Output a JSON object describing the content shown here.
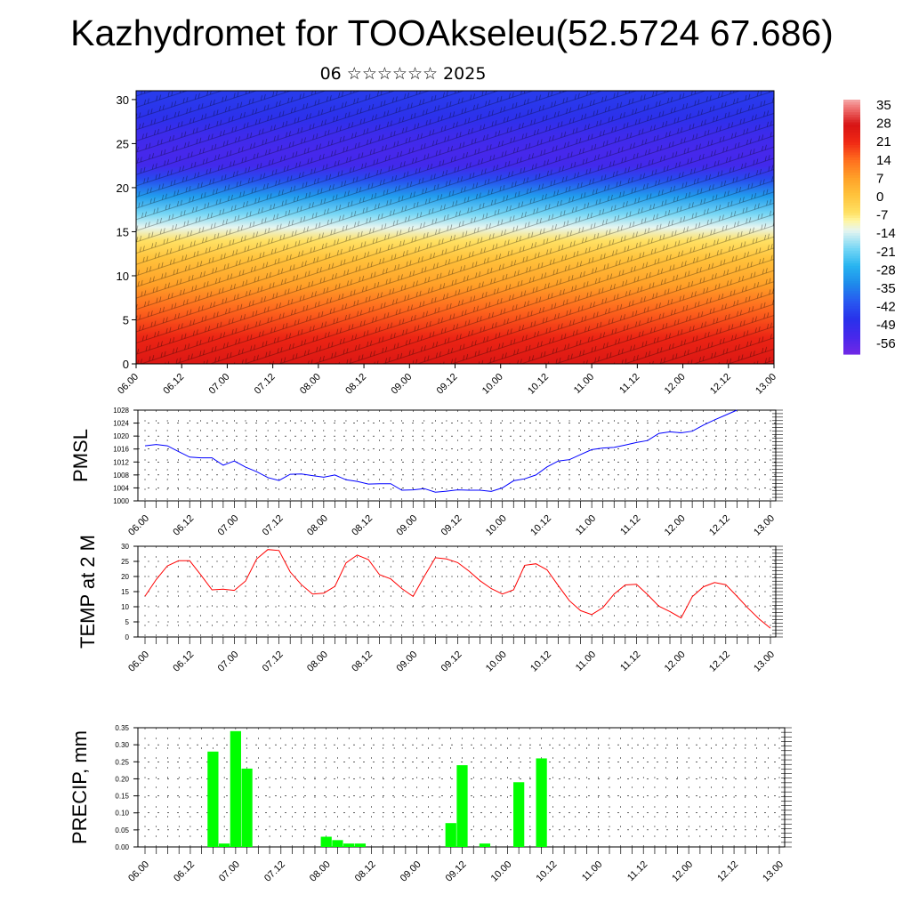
{
  "title": "Kazhydromet for TOOAkseleu(52.5724 67.686)",
  "subtitle": "06 ☆☆☆☆☆☆ 2025",
  "colors": {
    "pmsl_line": "#0000ff",
    "temp_line": "#ff0000",
    "precip_bar": "#00ff00"
  },
  "chart_data": [
    {
      "type": "heatmap",
      "title": "",
      "xlabel": "",
      "ylabel": "",
      "x_tick_labels": [
        "06.00",
        "06.12",
        "07.00",
        "07.12",
        "08.00",
        "08.12",
        "09.00",
        "09.12",
        "10.00",
        "10.12",
        "11.00",
        "11.12",
        "12.00",
        "12.12",
        "13.00"
      ],
      "y_tick_labels": [
        "0",
        "5",
        "10",
        "15",
        "20",
        "25",
        "30"
      ],
      "ylim": [
        0,
        31
      ],
      "colorbar_labels": [
        "35",
        "28",
        "21",
        "14",
        "7",
        "0",
        "-7",
        "-14",
        "-21",
        "-28",
        "-35",
        "-42",
        "-49",
        "-56"
      ],
      "colorbar_range": [
        -63,
        38
      ],
      "level_temperature_profile": {
        "levels": [
          0,
          3,
          6,
          9,
          12,
          14,
          15.5,
          17,
          19,
          21,
          22.5,
          24,
          26,
          28,
          31
        ],
        "values": [
          27,
          22,
          15,
          7,
          0,
          -7,
          -14,
          -21,
          -32,
          -45,
          -55,
          -56,
          -54,
          -50,
          -47
        ]
      },
      "overlay": "wind barbs"
    },
    {
      "type": "line",
      "ylabel": "PMSL",
      "x_tick_labels": [
        "06.00",
        "06.12",
        "07.00",
        "07.12",
        "08.00",
        "08.12",
        "09.00",
        "09.12",
        "10.00",
        "10.12",
        "11.00",
        "11.12",
        "12.00",
        "12.12",
        "13.00"
      ],
      "y_tick_labels": [
        "1000",
        "1004",
        "1008",
        "1012",
        "1016",
        "1020",
        "1024",
        "1028"
      ],
      "ylim": [
        1000,
        1028
      ],
      "grid": true,
      "x_step_hours": 3,
      "values": [
        1017.0,
        1017.4,
        1017.0,
        1015.2,
        1013.5,
        1013.3,
        1013.3,
        1011.0,
        1012.3,
        1010.4,
        1009.0,
        1007.2,
        1006.3,
        1008.2,
        1008.3,
        1007.8,
        1007.3,
        1008.0,
        1006.5,
        1006.0,
        1005.2,
        1005.3,
        1005.3,
        1003.3,
        1003.4,
        1003.8,
        1002.7,
        1003.0,
        1003.4,
        1003.3,
        1003.3,
        1002.9,
        1004.0,
        1006.2,
        1006.8,
        1008.0,
        1010.5,
        1012.3,
        1012.7,
        1014.3,
        1015.8,
        1016.3,
        1016.5,
        1017.2,
        1018.0,
        1018.6,
        1020.8,
        1021.3,
        1021.0,
        1021.5,
        1023.4,
        1025.0,
        1026.5,
        1028.0
      ]
    },
    {
      "type": "line",
      "ylabel": "TEMP at 2 M",
      "x_tick_labels": [
        "06.00",
        "06.12",
        "07.00",
        "07.12",
        "08.00",
        "08.12",
        "09.00",
        "09.12",
        "10.00",
        "10.12",
        "11.00",
        "11.12",
        "12.00",
        "12.12",
        "13.00"
      ],
      "y_tick_labels": [
        "0",
        "5",
        "10",
        "15",
        "20",
        "25",
        "30"
      ],
      "ylim": [
        0,
        30
      ],
      "grid": true,
      "x_step_hours": 3,
      "values": [
        13.5,
        19,
        23.5,
        25.2,
        25.2,
        20.5,
        15.6,
        15.8,
        15.4,
        18.5,
        25.8,
        28.9,
        28.6,
        21.5,
        17.3,
        14.2,
        14.5,
        16.7,
        24.5,
        27.1,
        25.6,
        20.6,
        19.2,
        16,
        13.4,
        20,
        26.2,
        25.8,
        24.6,
        21.8,
        18.6,
        16,
        14.2,
        15.6,
        23.7,
        24.2,
        22.2,
        17,
        12,
        8.7,
        7.4,
        9.7,
        14.2,
        17.2,
        17.4,
        14,
        10.2,
        8.4,
        6.3,
        13.3,
        16.6,
        18,
        17.3,
        13.5,
        9.5,
        5.9,
        2.9
      ]
    },
    {
      "type": "bar",
      "ylabel": "PRECIP, mm",
      "x_tick_labels": [
        "06.00",
        "06.12",
        "07.00",
        "07.12",
        "08.00",
        "08.12",
        "09.00",
        "09.12",
        "10.00",
        "10.12",
        "11.00",
        "11.12",
        "12.00",
        "12.12",
        "13.00"
      ],
      "y_tick_labels": [
        "0.00",
        "0.05",
        "0.10",
        "0.15",
        "0.20",
        "0.25",
        "0.30",
        "0.35"
      ],
      "ylim": [
        0,
        0.35
      ],
      "grid": true,
      "bars_hours_after_start": [
        18,
        21,
        24,
        27,
        48,
        51,
        54,
        57,
        81,
        84,
        90,
        99,
        105
      ],
      "values": [
        0.28,
        0.01,
        0.34,
        0.23,
        0.03,
        0.02,
        0.01,
        0.01,
        0.07,
        0.24,
        0.01,
        0.19,
        0.26
      ]
    }
  ]
}
